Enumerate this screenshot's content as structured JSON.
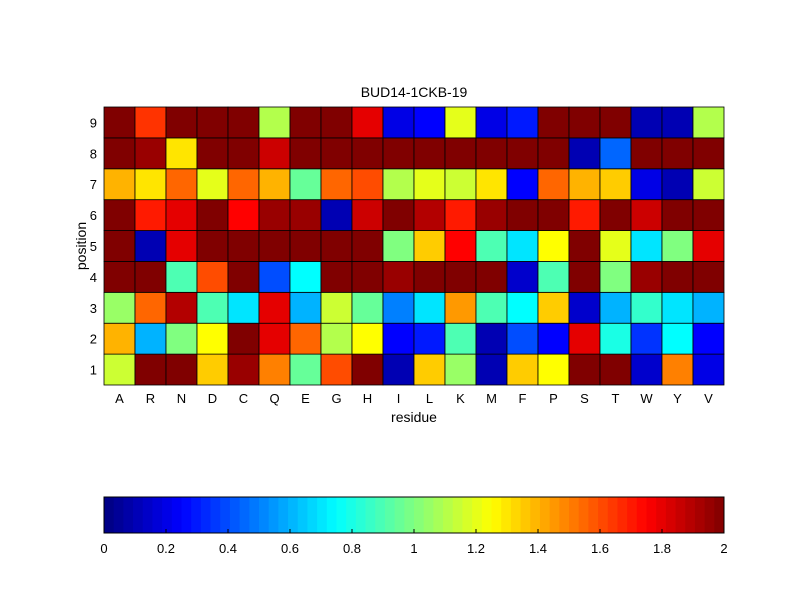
{
  "chart_data": {
    "type": "heatmap",
    "title": "BUD14-1CKB-19",
    "xlabel": "residue",
    "ylabel": "position",
    "x_categories": [
      "A",
      "R",
      "N",
      "D",
      "C",
      "Q",
      "E",
      "G",
      "H",
      "I",
      "L",
      "K",
      "M",
      "F",
      "P",
      "S",
      "T",
      "W",
      "Y",
      "V"
    ],
    "y_categories": [
      "1",
      "2",
      "3",
      "4",
      "5",
      "6",
      "7",
      "8",
      "9"
    ],
    "color_range": [
      0,
      2
    ],
    "colormap": "jet",
    "colorbar_ticks": [
      "0",
      "0.2",
      "0.4",
      "0.6",
      "0.8",
      "1",
      "1.2",
      "1.4",
      "1.6",
      "1.8",
      "2"
    ],
    "values": [
      [
        1.15,
        2.0,
        2.0,
        1.35,
        1.95,
        1.5,
        0.95,
        1.6,
        2.0,
        0.1,
        1.35,
        1.05,
        0.1,
        1.35,
        1.25,
        2.0,
        2.0,
        0.15,
        1.5,
        0.2
      ],
      [
        1.4,
        0.6,
        1.0,
        1.25,
        2.0,
        1.8,
        1.55,
        1.1,
        1.25,
        0.25,
        0.3,
        0.9,
        0.1,
        0.4,
        0.25,
        1.8,
        0.8,
        0.35,
        0.75,
        0.25
      ],
      [
        1.05,
        1.55,
        1.9,
        0.9,
        0.7,
        1.8,
        0.6,
        1.15,
        0.95,
        0.5,
        0.7,
        1.45,
        0.9,
        0.75,
        1.35,
        0.15,
        0.6,
        0.85,
        0.7,
        0.6
      ],
      [
        2.0,
        2.0,
        0.9,
        1.6,
        2.0,
        0.4,
        0.75,
        2.0,
        2.0,
        1.95,
        2.0,
        2.0,
        2.0,
        0.15,
        0.9,
        2.0,
        1.0,
        1.95,
        2.0,
        2.0
      ],
      [
        2.0,
        0.1,
        1.8,
        2.0,
        2.0,
        2.0,
        2.0,
        2.0,
        2.0,
        1.0,
        1.35,
        1.75,
        0.9,
        0.7,
        1.25,
        2.0,
        1.2,
        0.7,
        1.0,
        1.8
      ],
      [
        2.0,
        1.7,
        1.8,
        2.0,
        1.75,
        1.95,
        1.95,
        0.1,
        1.85,
        2.0,
        1.9,
        1.7,
        1.95,
        2.0,
        2.0,
        1.7,
        2.0,
        1.85,
        2.0,
        2.0
      ],
      [
        1.4,
        1.3,
        1.55,
        1.2,
        1.55,
        1.4,
        0.95,
        1.55,
        1.6,
        1.1,
        1.2,
        1.15,
        1.3,
        0.25,
        1.55,
        1.4,
        1.35,
        0.2,
        0.1,
        1.15
      ],
      [
        2.0,
        1.95,
        1.3,
        2.0,
        2.0,
        1.85,
        2.0,
        2.0,
        2.0,
        2.0,
        2.0,
        2.0,
        2.0,
        2.0,
        2.0,
        0.1,
        0.45,
        2.0,
        2.0,
        2.0
      ],
      [
        2.0,
        1.65,
        2.0,
        2.0,
        2.0,
        1.1,
        2.0,
        2.0,
        1.8,
        0.2,
        0.25,
        1.2,
        0.2,
        0.3,
        2.0,
        2.0,
        2.0,
        0.1,
        0.1,
        1.1
      ]
    ]
  }
}
